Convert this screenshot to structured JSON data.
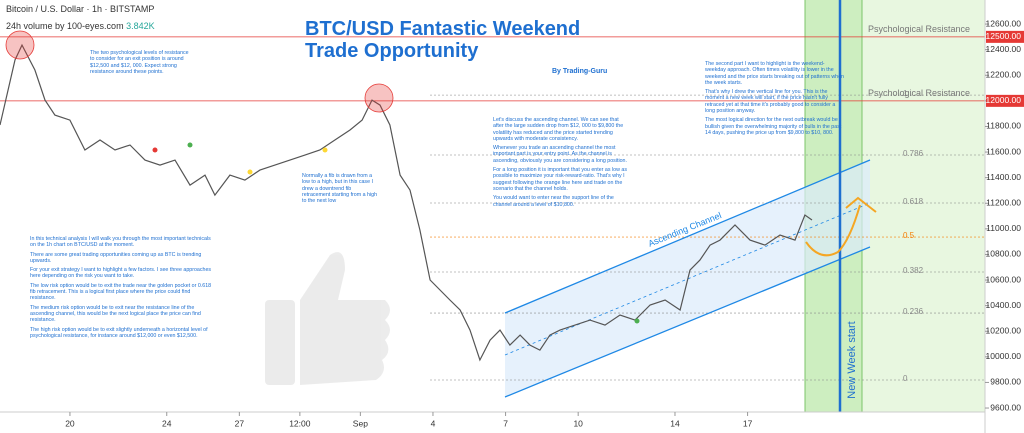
{
  "header": {
    "symbol": "Bitcoin / U.S. Dollar · 1h · BITSTAMP",
    "volume_label": "24h volume by 100-eyes.com",
    "volume_value": "3.842K"
  },
  "chart_data": {
    "type": "line",
    "title": "BTC/USD Fantastic Weekend Trade Opportunity",
    "subtitle": "By Trading-Guru",
    "x": [
      -2.89,
      -2.27,
      -1.98,
      -1.45,
      -1.03,
      -0.62,
      0,
      0.62,
      1.24,
      1.86,
      2.48,
      3.1,
      3.72,
      4.34,
      4.96,
      5.58,
      5.99,
      6.61,
      7.23,
      7.85,
      8.47,
      9.09,
      9.71,
      10.33,
      10.95,
      11.57,
      12.07,
      12.48,
      12.81,
      13.22,
      13.64,
      14.05,
      14.46,
      14.88,
      15.29,
      15.7,
      16.12,
      16.53,
      16.94,
      17.36,
      17.77,
      18.18,
      18.6,
      19.01,
      19.42,
      19.83,
      20.25,
      20.87,
      21.49,
      22.11,
      22.73,
      23.35,
      23.97,
      24.59,
      25.21,
      25.62,
      26.03,
      26.45,
      26.86,
      27.48,
      28.1,
      28.72,
      29.34,
      29.96,
      30.37,
      30.66
    ],
    "values": [
      11811,
      12319,
      12436,
      12241,
      12006,
      11889,
      11850,
      11616,
      11694,
      11616,
      11655,
      11537,
      11498,
      11537,
      11342,
      11420,
      11264,
      11420,
      11381,
      11459,
      11498,
      11537,
      11576,
      11616,
      11694,
      11772,
      11850,
      12006,
      11967,
      11811,
      11420,
      11303,
      10991,
      10600,
      10522,
      10444,
      10366,
      10209,
      9975,
      10131,
      10209,
      10092,
      10170,
      10092,
      10053,
      10170,
      10209,
      10248,
      10287,
      10248,
      10327,
      10287,
      10405,
      10444,
      10366,
      10678,
      10756,
      10873,
      10912,
      11030,
      10912,
      10873,
      10952,
      10912,
      11108,
      11069
    ],
    "color": "#555555",
    "xlim": [
      -2.89,
      37.81
    ],
    "ylim": [
      9569,
      12788
    ],
    "grid": false,
    "xticks": [
      {
        "value": 0,
        "label": "20"
      },
      {
        "value": 4,
        "label": "24"
      },
      {
        "value": 7,
        "label": "27"
      },
      {
        "value": 9.5,
        "label": "12:00"
      },
      {
        "value": 12,
        "label": "Sep"
      },
      {
        "value": 15,
        "label": "4"
      },
      {
        "value": 18,
        "label": "7"
      },
      {
        "value": 21,
        "label": "10"
      },
      {
        "value": 25,
        "label": "14"
      },
      {
        "value": 28,
        "label": "17"
      }
    ],
    "yticks": [
      {
        "value": 9600,
        "label": "9600.00"
      },
      {
        "value": 9800,
        "label": "9800.00"
      },
      {
        "value": 10000,
        "label": "10000.00"
      },
      {
        "value": 10200,
        "label": "10200.00"
      },
      {
        "value": 10400,
        "label": "10400.00"
      },
      {
        "value": 10600,
        "label": "10600.00"
      },
      {
        "value": 10800,
        "label": "10800.00"
      },
      {
        "value": 11000,
        "label": "11000.00"
      },
      {
        "value": 11200,
        "label": "11200.00"
      },
      {
        "value": 11400,
        "label": "11400.00"
      },
      {
        "value": 11600,
        "label": "11600.00"
      },
      {
        "value": 11800,
        "label": "11800.00"
      },
      {
        "value": 12000,
        "label": "12000.00"
      },
      {
        "value": 12200,
        "label": "12200.00"
      },
      {
        "value": 12400,
        "label": "12400.00"
      },
      {
        "value": 12600,
        "label": "12600.00"
      }
    ],
    "resistance_levels": [
      {
        "value": 12500,
        "label": "12500.00",
        "name": "Psychological Resistance"
      },
      {
        "value": 12000,
        "label": "12000.00",
        "name": "Psychological Resistance"
      }
    ],
    "fib_levels": [
      {
        "level": 1,
        "price": 12045,
        "color": "#888888"
      },
      {
        "level": 0.786,
        "price": 11577,
        "color": "#888888"
      },
      {
        "level": 0.618,
        "price": 11202,
        "color": "#888888"
      },
      {
        "level": 0.5,
        "price": 10936,
        "color": "#f57c00"
      },
      {
        "level": 0.382,
        "price": 10663,
        "color": "#888888"
      },
      {
        "level": 0.236,
        "price": 10342,
        "color": "#888888"
      },
      {
        "level": 0,
        "price": 9819,
        "color": "#888888"
      }
    ],
    "channel_label": "Ascending Channel",
    "vertical_label": "New Week start",
    "annotations": [
      [
        "The two psychological levels of resistance to consider for an exit position is around $12,500 and $12, 000. Expect strong resistance around these points."
      ],
      [
        "In this technical analysis I will walk you through the most important technicals on the 1h chart on BTC/USD at the moment.",
        "There are some great trading opportunities coming up as BTC is trending upwards.",
        "For your exit strategy I want to highlight a few factors. I see three approaches here depending on the risk you want to take.",
        "The low risk option would be to exit the trade near the golden pocket or 0.618 fib retracement. This is a logical first place where the price could find resistance.",
        "The medium risk option would be to exit near the resistance line of the ascending channel, this would be the next logical place the price can find resistance.",
        "The high risk option would be to exit slightly underneath a horizontal level of psychological resistance, for instance around $12,000 or even $12,500."
      ],
      [
        "Normally a fib is drawn from a low to a high, but in this case I drew a downtrend fib retracement starting from a high to the next low"
      ],
      [
        "Let's discuss the ascending channel. We can see that after the large sudden drop from $12, 000 to $9,800 the volatility has reduced and the price started trending upwards with moderate consistency.",
        "Whenever you trade an ascending channel the most important part is your entry point. As the channel is ascending, obviously you are considering a long position.",
        "For a long position it is important that you enter as low as possible to maximize your risk-reward-ratio. That's why I suggest following the orange line here and trade on the scenario that the channel holds.",
        "You would want to enter near the support line of the channel around a level of $10,800."
      ],
      [
        "The second part I want to highlight is the weekend-weekday approach. Often times volatility is lower in the weekend and the price starts breaking out of patterns when the week starts.",
        "That's why I drew the vertical line for you. This is the moment a new week will start, if the price hasn't fully retraced yet at that time it's probably good to consider a long position anyway.",
        "The most logical direction for the next outbreak would be bullish given the overwhelming majority of bulls in the past 14 days, pushing the price up from $9,800 to $10, 800."
      ]
    ]
  }
}
